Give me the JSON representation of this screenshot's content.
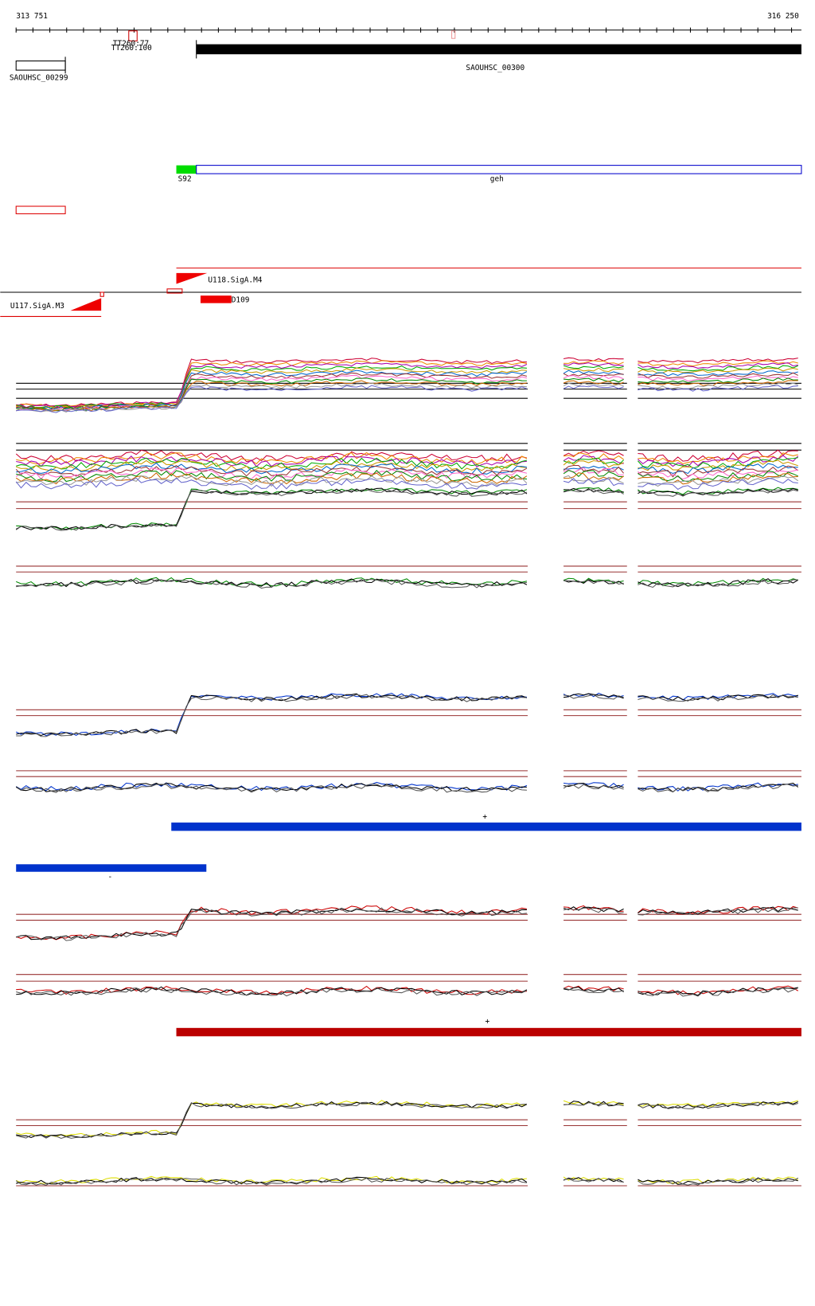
{
  "ruler": {
    "start": "313 751",
    "end": "316 250"
  },
  "terminators": [
    "TT260:77",
    "TT260:100"
  ],
  "genes": [
    "SAOUHSC_00299",
    "SAOUHSC_00300"
  ],
  "annotations": [
    "S92",
    "geh"
  ],
  "promoters": [
    "U118.SigA.M4",
    "U117.SigA.M3",
    "D109"
  ],
  "strands": [
    "+",
    "-",
    "+"
  ]
}
